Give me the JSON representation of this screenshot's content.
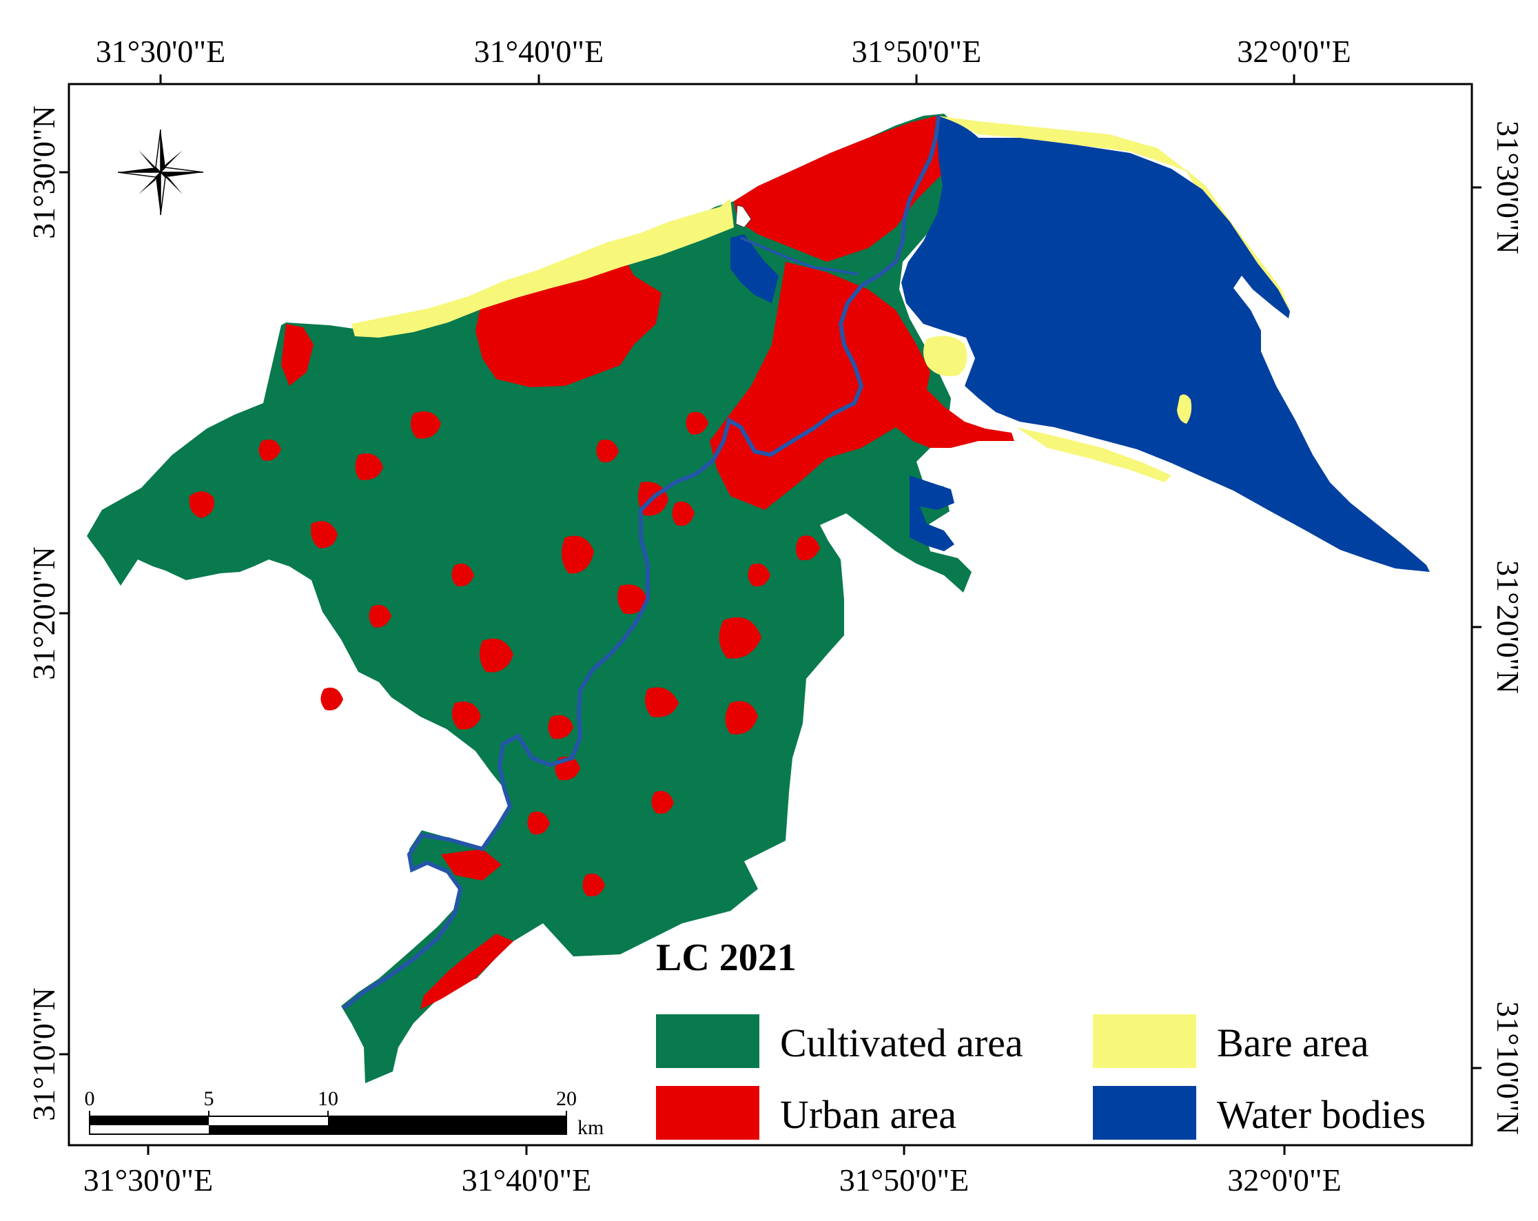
{
  "map": {
    "title": "LC 2021",
    "colors": {
      "cultivated": "#087a4e",
      "urban": "#e60000",
      "bare": "#f7f77a",
      "water": "#0040a0"
    },
    "legend": [
      {
        "label": "Cultivated area",
        "color": "#087a4e"
      },
      {
        "label": "Urban area",
        "color": "#e60000"
      },
      {
        "label": "Bare area",
        "color": "#f7f77a"
      },
      {
        "label": "Water bodies",
        "color": "#0040a0"
      }
    ],
    "top_labels": [
      "31°30'0\"E",
      "31°40'0\"E",
      "31°50'0\"E",
      "32°0'0\"E"
    ],
    "bottom_labels": [
      "31°30'0\"E",
      "31°40'0\"E",
      "31°50'0\"E",
      "32°0'0\"E"
    ],
    "left_labels": [
      "31°30'0\"N",
      "31°20'0\"N",
      "31°10'0\"N"
    ],
    "right_labels": [
      "31°30'0\"N",
      "31°20'0\"N",
      "31°10'0\"N"
    ],
    "scale_bar": {
      "ticks": [
        "0",
        "5",
        "10",
        "20"
      ],
      "unit": "km"
    },
    "north_arrow_icon": "compass-rose-icon"
  }
}
